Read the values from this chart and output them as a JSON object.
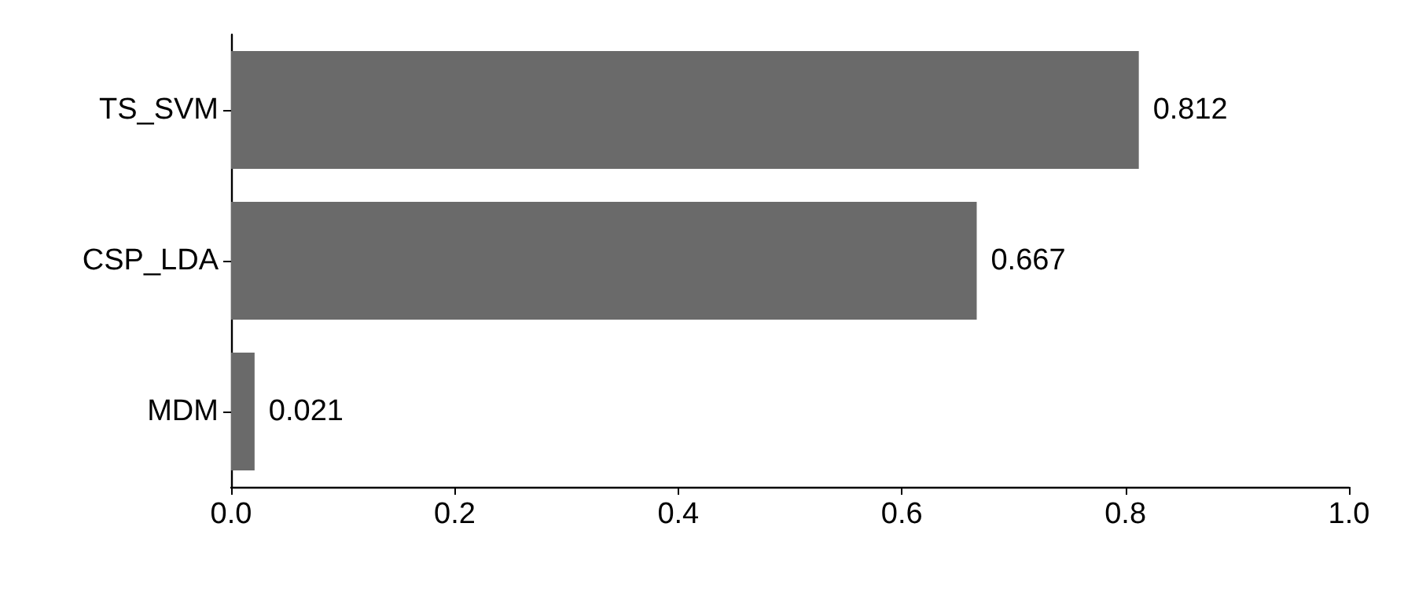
{
  "chart_data": {
    "type": "bar",
    "orientation": "horizontal",
    "categories": [
      "TS_SVM",
      "CSP_LDA",
      "MDM"
    ],
    "values": [
      0.812,
      0.667,
      0.021
    ],
    "color": "#6a6a6a",
    "xlim": [
      0,
      1
    ],
    "xticks": [
      {
        "value": 0,
        "label": "0.0"
      },
      {
        "value": 0.2,
        "label": "0.2"
      },
      {
        "value": 0.4,
        "label": "0.4"
      },
      {
        "value": 0.6,
        "label": "0.6"
      },
      {
        "value": 0.8,
        "label": "0.8"
      },
      {
        "value": 1,
        "label": "1.0"
      }
    ],
    "data_labels": true,
    "grid": false
  }
}
